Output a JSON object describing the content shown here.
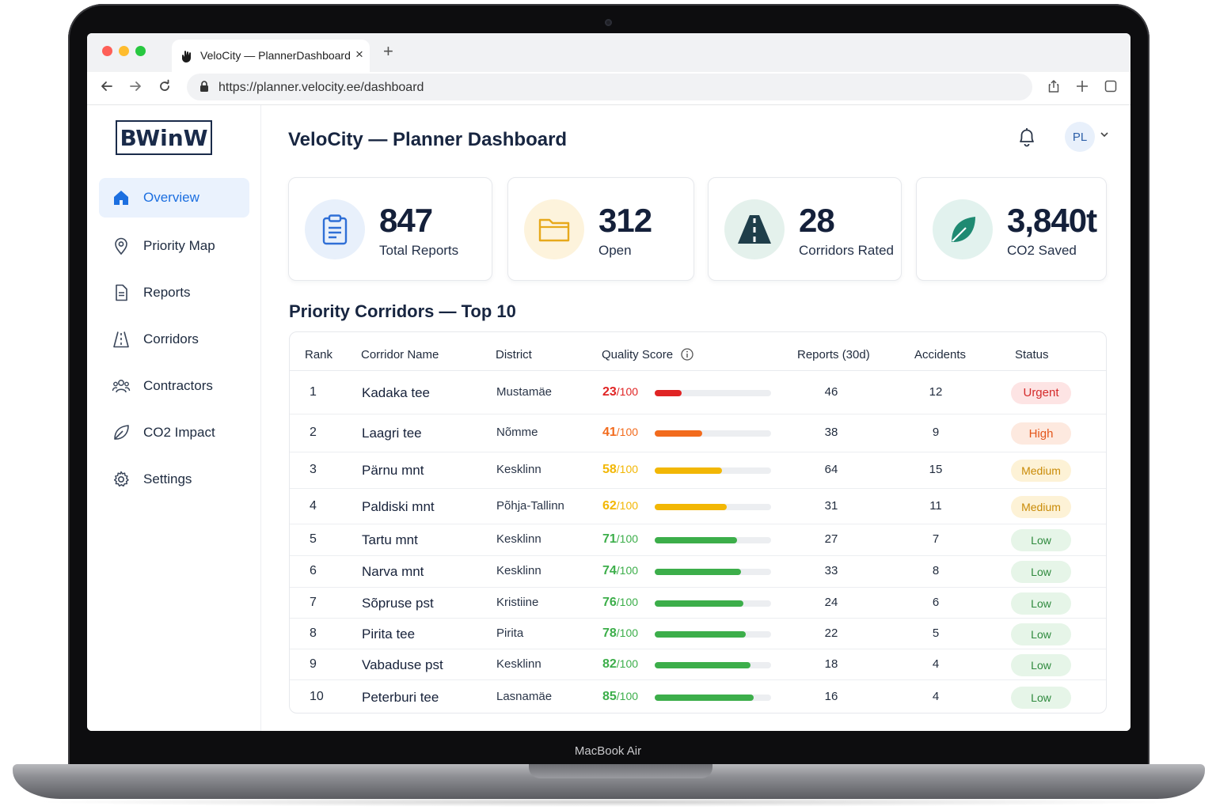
{
  "device": {
    "label": "MacBook Air"
  },
  "browser": {
    "tab_title": "VeloCity — PlannerDashboard",
    "url": "https://planner.velocity.ee/dashboard"
  },
  "sidebar": {
    "logo": "BWinW",
    "items": [
      {
        "label": "Overview",
        "icon": "home-icon",
        "active": true
      },
      {
        "label": "Priority Map",
        "icon": "map-pin-icon"
      },
      {
        "label": "Reports",
        "icon": "document-icon"
      },
      {
        "label": "Corridors",
        "icon": "road-icon"
      },
      {
        "label": "Contractors",
        "icon": "users-icon"
      },
      {
        "label": "CO2 Impact",
        "icon": "leaf-icon"
      },
      {
        "label": "Settings",
        "icon": "gear-icon"
      }
    ]
  },
  "header": {
    "title": "VeloCity — Planner Dashboard",
    "avatar_initials": "PL"
  },
  "kpis": [
    {
      "value": "847",
      "label": "Total Reports",
      "icon": "clipboard-icon",
      "color": "#2f6fd6",
      "bg": "#e8f0fb"
    },
    {
      "value": "312",
      "label": "Open",
      "icon": "folder-icon",
      "color": "#e7a91b",
      "bg": "#fdf3dc"
    },
    {
      "value": "28",
      "label": "Corridors Rated",
      "icon": "road-icon",
      "color": "#1f3e4a",
      "bg": "#e4f1ec"
    },
    {
      "value": "3,840t",
      "label": "CO2 Saved",
      "icon": "leaf-icon",
      "color": "#1f8a72",
      "bg": "#e2f2ee"
    }
  ],
  "corridors": {
    "title": "Priority Corridors — Top 10",
    "columns": [
      "Rank",
      "Corridor Name",
      "District",
      "Quality Score",
      "Reports (30d)",
      "Accidents",
      "Status"
    ],
    "score_suffix": "/100",
    "rows": [
      {
        "rank": "1",
        "name": "Kadaka tee",
        "district": "Mustamäe",
        "score": 23,
        "reports": "46",
        "accidents": "12",
        "status": "Urgent"
      },
      {
        "rank": "2",
        "name": "Laagri tee",
        "district": "Nõmme",
        "score": 41,
        "reports": "38",
        "accidents": "9",
        "status": "High"
      },
      {
        "rank": "3",
        "name": "Pärnu mnt",
        "district": "Kesklinn",
        "score": 58,
        "reports": "64",
        "accidents": "15",
        "status": "Medium"
      },
      {
        "rank": "4",
        "name": "Paldiski mnt",
        "district": "Põhja-Tallinn",
        "score": 62,
        "reports": "31",
        "accidents": "11",
        "status": "Medium"
      },
      {
        "rank": "5",
        "name": "Tartu mnt",
        "district": "Kesklinn",
        "score": 71,
        "reports": "27",
        "accidents": "7",
        "status": "Low"
      },
      {
        "rank": "6",
        "name": "Narva mnt",
        "district": "Kesklinn",
        "score": 74,
        "reports": "33",
        "accidents": "8",
        "status": "Low"
      },
      {
        "rank": "7",
        "name": "Sõpruse pst",
        "district": "Kristiine",
        "score": 76,
        "reports": "24",
        "accidents": "6",
        "status": "Low"
      },
      {
        "rank": "8",
        "name": "Pirita tee",
        "district": "Pirita",
        "score": 78,
        "reports": "22",
        "accidents": "5",
        "status": "Low"
      },
      {
        "rank": "9",
        "name": "Vabaduse pst",
        "district": "Kesklinn",
        "score": 82,
        "reports": "18",
        "accidents": "4",
        "status": "Low"
      },
      {
        "rank": "10",
        "name": "Peterburi tee",
        "district": "Lasnamäe",
        "score": 85,
        "reports": "16",
        "accidents": "4",
        "status": "Low"
      }
    ]
  },
  "status_colors": {
    "Urgent": {
      "text": "#d42a2a",
      "bg": "#fde4e4"
    },
    "High": {
      "text": "#e4561b",
      "bg": "#fde9df"
    },
    "Medium": {
      "text": "#c98a06",
      "bg": "#fdf2d6"
    },
    "Low": {
      "text": "#2f8a3e",
      "bg": "#e6f5e8"
    }
  },
  "score_colors": {
    "Urgent": "#e02424",
    "High": "#f26b1d",
    "Medium": "#f2b705",
    "Low": "#3cae4a"
  }
}
